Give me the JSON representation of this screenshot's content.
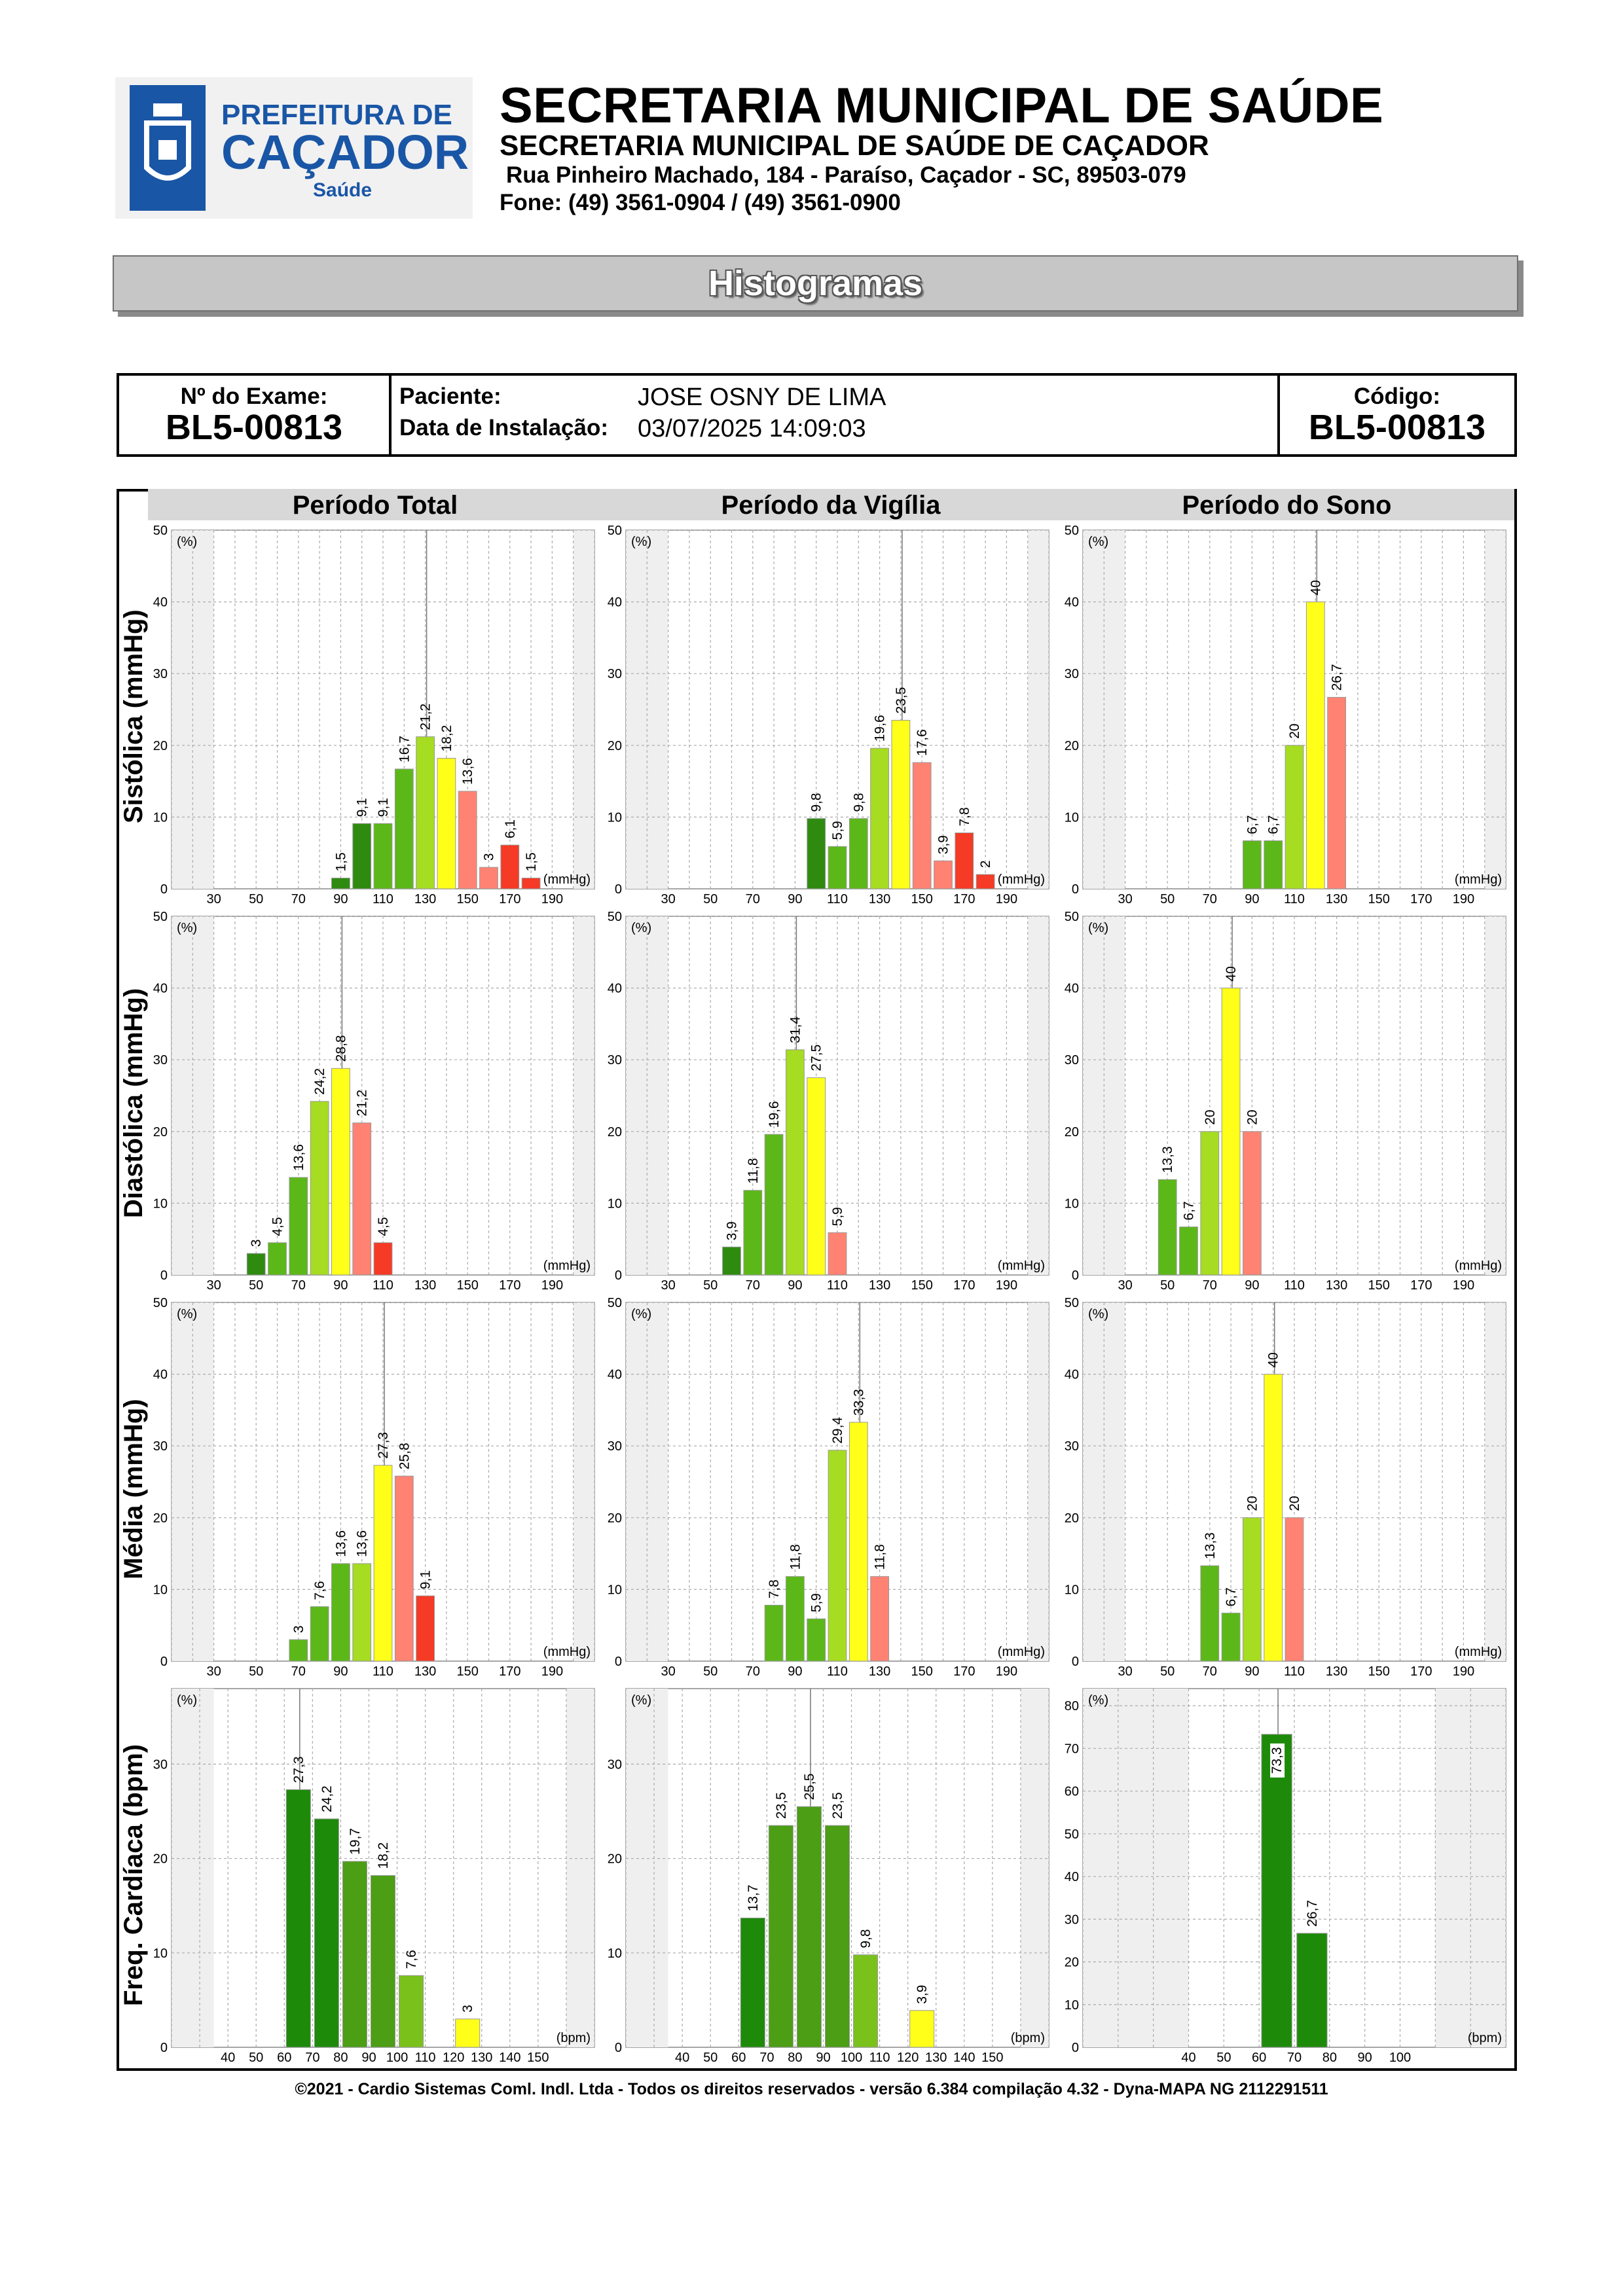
{
  "header": {
    "logo_text_top": "PREFEITURA DE",
    "logo_text_main": "CAÇADOR",
    "logo_text_sub": "Saúde",
    "title": "SECRETARIA MUNICIPAL DE SAÚDE",
    "subtitle": "SECRETARIA MUNICIPAL DE SAÚDE DE CAÇADOR",
    "address": "Rua Pinheiro Machado, 184 - Paraíso, Caçador - SC, 89503-079",
    "phone": "Fone: (49) 3561-0904  / (49) 3561-0900"
  },
  "banner": "Histogramas",
  "info": {
    "exam_label": "Nº do Exame:",
    "exam_value": "BL5-00813",
    "patient_label": "Paciente:",
    "patient_value": "JOSE OSNY DE LIMA",
    "install_label": "Data de Instalação:",
    "install_value": "03/07/2025 14:09:03",
    "code_label": "Código:",
    "code_value": "BL5-00813"
  },
  "columns": [
    "Período Total",
    "Período da Vigília",
    "Período do Sono"
  ],
  "rows": [
    "Sistólica (mmHg)",
    "Diastólica (mmHg)",
    "Média (mmHg)",
    "Freq. Cardíaca (bpm)"
  ],
  "footer": "©2021 - Cardio Sistemas Coml. Indl. Ltda - Todos os direitos reservados - versão 6.384 compilação 4.32 - Dyna-MAPA NG 2112291511",
  "colors": {
    "dark_green": "#2e8b10",
    "green": "#5cb818",
    "light_green": "#a6dc22",
    "yellow": "#ffff1a",
    "salmon": "#ff8272",
    "red": "#f53a25",
    "fc_dark": "#1d8a0a",
    "fc_mid": "#4c9e15",
    "fc_light": "#7bc11c"
  },
  "chart_data": [
    {
      "type": "bar",
      "row": "Sistólica (mmHg)",
      "column": "Período Total",
      "unit": "(mmHg)",
      "ylabel": "(%)",
      "ylim": [
        0,
        50
      ],
      "x_ticks": [
        "30",
        "50",
        "70",
        "90",
        "110",
        "130",
        "150",
        "170",
        "190"
      ],
      "bars": [
        {
          "x": 90,
          "v": 1.5,
          "label": "1,5",
          "c": "dark_green"
        },
        {
          "x": 100,
          "v": 9.1,
          "label": "9,1",
          "c": "dark_green"
        },
        {
          "x": 110,
          "v": 9.1,
          "label": "9,1",
          "c": "green"
        },
        {
          "x": 120,
          "v": 16.7,
          "label": "16,7",
          "c": "green"
        },
        {
          "x": 130,
          "v": 21.2,
          "label": "21,2",
          "c": "light_green"
        },
        {
          "x": 140,
          "v": 18.2,
          "label": "18,2",
          "c": "yellow"
        },
        {
          "x": 150,
          "v": 13.6,
          "label": "13,6",
          "c": "salmon"
        },
        {
          "x": 160,
          "v": 3,
          "label": "3",
          "c": "salmon"
        },
        {
          "x": 170,
          "v": 6.1,
          "label": "6,1",
          "c": "red"
        },
        {
          "x": 180,
          "v": 1.5,
          "label": "1,5",
          "c": "red"
        }
      ]
    },
    {
      "type": "bar",
      "row": "Sistólica (mmHg)",
      "column": "Período da Vigília",
      "unit": "(mmHg)",
      "ylabel": "(%)",
      "ylim": [
        0,
        50
      ],
      "x_ticks": [
        "30",
        "50",
        "70",
        "90",
        "110",
        "130",
        "150",
        "170",
        "190"
      ],
      "bars": [
        {
          "x": 100,
          "v": 9.8,
          "label": "9,8",
          "c": "dark_green"
        },
        {
          "x": 110,
          "v": 5.9,
          "label": "5,9",
          "c": "green"
        },
        {
          "x": 120,
          "v": 9.8,
          "label": "9,8",
          "c": "green"
        },
        {
          "x": 130,
          "v": 19.6,
          "label": "19,6",
          "c": "light_green"
        },
        {
          "x": 140,
          "v": 23.5,
          "label": "23,5",
          "c": "yellow"
        },
        {
          "x": 150,
          "v": 17.6,
          "label": "17,6",
          "c": "salmon"
        },
        {
          "x": 160,
          "v": 3.9,
          "label": "3,9",
          "c": "salmon"
        },
        {
          "x": 170,
          "v": 7.8,
          "label": "7,8",
          "c": "red"
        },
        {
          "x": 180,
          "v": 2,
          "label": "2",
          "c": "red"
        }
      ]
    },
    {
      "type": "bar",
      "row": "Sistólica (mmHg)",
      "column": "Período do Sono",
      "unit": "(mmHg)",
      "ylabel": "(%)",
      "ylim": [
        0,
        50
      ],
      "x_ticks": [
        "30",
        "50",
        "70",
        "90",
        "110",
        "130",
        "150",
        "170",
        "190"
      ],
      "bars": [
        {
          "x": 90,
          "v": 6.7,
          "label": "6,7",
          "c": "green"
        },
        {
          "x": 100,
          "v": 6.7,
          "label": "6,7",
          "c": "green"
        },
        {
          "x": 110,
          "v": 20,
          "label": "20",
          "c": "light_green"
        },
        {
          "x": 120,
          "v": 40,
          "label": "40",
          "c": "yellow"
        },
        {
          "x": 130,
          "v": 26.7,
          "label": "26,7",
          "c": "salmon"
        }
      ]
    },
    {
      "type": "bar",
      "row": "Diastólica (mmHg)",
      "column": "Período Total",
      "unit": "(mmHg)",
      "ylabel": "(%)",
      "ylim": [
        0,
        50
      ],
      "x_ticks": [
        "30",
        "50",
        "70",
        "90",
        "110",
        "130",
        "150",
        "170",
        "190"
      ],
      "bars": [
        {
          "x": 50,
          "v": 3,
          "label": "3",
          "c": "dark_green"
        },
        {
          "x": 60,
          "v": 4.5,
          "label": "4,5",
          "c": "green"
        },
        {
          "x": 70,
          "v": 13.6,
          "label": "13,6",
          "c": "green"
        },
        {
          "x": 80,
          "v": 24.2,
          "label": "24,2",
          "c": "light_green"
        },
        {
          "x": 90,
          "v": 28.8,
          "label": "28,8",
          "c": "yellow"
        },
        {
          "x": 100,
          "v": 21.2,
          "label": "21,2",
          "c": "salmon"
        },
        {
          "x": 110,
          "v": 4.5,
          "label": "4,5",
          "c": "red"
        }
      ]
    },
    {
      "type": "bar",
      "row": "Diastólica (mmHg)",
      "column": "Período da Vigília",
      "unit": "(mmHg)",
      "ylabel": "(%)",
      "ylim": [
        0,
        50
      ],
      "x_ticks": [
        "30",
        "50",
        "70",
        "90",
        "110",
        "130",
        "150",
        "170",
        "190"
      ],
      "bars": [
        {
          "x": 60,
          "v": 3.9,
          "label": "3,9",
          "c": "dark_green"
        },
        {
          "x": 70,
          "v": 11.8,
          "label": "11,8",
          "c": "green"
        },
        {
          "x": 80,
          "v": 19.6,
          "label": "19,6",
          "c": "green"
        },
        {
          "x": 90,
          "v": 31.4,
          "label": "31,4",
          "c": "light_green"
        },
        {
          "x": 100,
          "v": 27.5,
          "label": "27,5",
          "c": "yellow"
        },
        {
          "x": 110,
          "v": 5.9,
          "label": "5,9",
          "c": "salmon"
        }
      ]
    },
    {
      "type": "bar",
      "row": "Diastólica (mmHg)",
      "column": "Período do Sono",
      "unit": "(mmHg)",
      "ylabel": "(%)",
      "ylim": [
        0,
        50
      ],
      "x_ticks": [
        "30",
        "50",
        "70",
        "90",
        "110",
        "130",
        "150",
        "170",
        "190"
      ],
      "bars": [
        {
          "x": 50,
          "v": 13.3,
          "label": "13,3",
          "c": "green"
        },
        {
          "x": 60,
          "v": 6.7,
          "label": "6,7",
          "c": "green"
        },
        {
          "x": 70,
          "v": 20,
          "label": "20",
          "c": "light_green"
        },
        {
          "x": 80,
          "v": 40,
          "label": "40",
          "c": "yellow"
        },
        {
          "x": 90,
          "v": 20,
          "label": "20",
          "c": "salmon"
        }
      ]
    },
    {
      "type": "bar",
      "row": "Média (mmHg)",
      "column": "Período Total",
      "unit": "(mmHg)",
      "ylabel": "(%)",
      "ylim": [
        0,
        50
      ],
      "x_ticks": [
        "30",
        "50",
        "70",
        "90",
        "110",
        "130",
        "150",
        "170",
        "190"
      ],
      "bars": [
        {
          "x": 70,
          "v": 3,
          "label": "3",
          "c": "green"
        },
        {
          "x": 80,
          "v": 7.6,
          "label": "7,6",
          "c": "green"
        },
        {
          "x": 90,
          "v": 13.6,
          "label": "13,6",
          "c": "green"
        },
        {
          "x": 100,
          "v": 13.6,
          "label": "13,6",
          "c": "light_green"
        },
        {
          "x": 110,
          "v": 27.3,
          "label": "27,3",
          "c": "yellow"
        },
        {
          "x": 120,
          "v": 25.8,
          "label": "25,8",
          "c": "salmon"
        },
        {
          "x": 130,
          "v": 9.1,
          "label": "9,1",
          "c": "red"
        }
      ]
    },
    {
      "type": "bar",
      "row": "Média (mmHg)",
      "column": "Período da Vigília",
      "unit": "(mmHg)",
      "ylabel": "(%)",
      "ylim": [
        0,
        50
      ],
      "x_ticks": [
        "30",
        "50",
        "70",
        "90",
        "110",
        "130",
        "150",
        "170",
        "190"
      ],
      "bars": [
        {
          "x": 80,
          "v": 7.8,
          "label": "7,8",
          "c": "green"
        },
        {
          "x": 90,
          "v": 11.8,
          "label": "11,8",
          "c": "green"
        },
        {
          "x": 100,
          "v": 5.9,
          "label": "5,9",
          "c": "green"
        },
        {
          "x": 110,
          "v": 29.4,
          "label": "29,4",
          "c": "light_green"
        },
        {
          "x": 120,
          "v": 33.3,
          "label": "33,3",
          "c": "yellow"
        },
        {
          "x": 130,
          "v": 11.8,
          "label": "11,8",
          "c": "salmon"
        }
      ]
    },
    {
      "type": "bar",
      "row": "Média (mmHg)",
      "column": "Período do Sono",
      "unit": "(mmHg)",
      "ylabel": "(%)",
      "ylim": [
        0,
        50
      ],
      "x_ticks": [
        "30",
        "50",
        "70",
        "90",
        "110",
        "130",
        "150",
        "170",
        "190"
      ],
      "bars": [
        {
          "x": 70,
          "v": 13.3,
          "label": "13,3",
          "c": "green"
        },
        {
          "x": 80,
          "v": 6.7,
          "label": "6,7",
          "c": "green"
        },
        {
          "x": 90,
          "v": 20,
          "label": "20",
          "c": "light_green"
        },
        {
          "x": 100,
          "v": 40,
          "label": "40",
          "c": "yellow"
        },
        {
          "x": 110,
          "v": 20,
          "label": "20",
          "c": "salmon"
        }
      ]
    },
    {
      "type": "bar",
      "row": "Freq. Cardíaca (bpm)",
      "column": "Período Total",
      "unit": "(bpm)",
      "ylabel": "(%)",
      "ylim": [
        0,
        38
      ],
      "y_ticks": [
        0,
        10,
        20,
        30
      ],
      "x_ticks": [
        "40",
        "50",
        "60",
        "70",
        "80",
        "90",
        "100",
        "110",
        "120",
        "130",
        "140",
        "150"
      ],
      "bars": [
        {
          "x": 65,
          "v": 27.3,
          "label": "27,3",
          "c": "fc_dark"
        },
        {
          "x": 75,
          "v": 24.2,
          "label": "24,2",
          "c": "fc_dark"
        },
        {
          "x": 85,
          "v": 19.7,
          "label": "19,7",
          "c": "fc_mid"
        },
        {
          "x": 95,
          "v": 18.2,
          "label": "18,2",
          "c": "fc_mid"
        },
        {
          "x": 105,
          "v": 7.6,
          "label": "7,6",
          "c": "fc_light"
        },
        {
          "x": 125,
          "v": 3,
          "label": "3",
          "c": "yellow"
        }
      ]
    },
    {
      "type": "bar",
      "row": "Freq. Cardíaca (bpm)",
      "column": "Período da Vigília",
      "unit": "(bpm)",
      "ylabel": "(%)",
      "ylim": [
        0,
        38
      ],
      "y_ticks": [
        0,
        10,
        20,
        30
      ],
      "x_ticks": [
        "40",
        "50",
        "60",
        "70",
        "80",
        "90",
        "100",
        "110",
        "120",
        "130",
        "140",
        "150"
      ],
      "bars": [
        {
          "x": 65,
          "v": 13.7,
          "label": "13,7",
          "c": "fc_dark"
        },
        {
          "x": 75,
          "v": 23.5,
          "label": "23,5",
          "c": "fc_mid"
        },
        {
          "x": 85,
          "v": 25.5,
          "label": "25,5",
          "c": "fc_mid"
        },
        {
          "x": 95,
          "v": 23.5,
          "label": "23,5",
          "c": "fc_mid"
        },
        {
          "x": 105,
          "v": 9.8,
          "label": "9,8",
          "c": "fc_light"
        },
        {
          "x": 125,
          "v": 3.9,
          "label": "3,9",
          "c": "yellow"
        }
      ]
    },
    {
      "type": "bar",
      "row": "Freq. Cardíaca (bpm)",
      "column": "Período do Sono",
      "unit": "(bpm)",
      "ylabel": "(%)",
      "ylim": [
        0,
        84
      ],
      "y_ticks": [
        0,
        10,
        20,
        30,
        40,
        50,
        60,
        70,
        80
      ],
      "x_ticks": [
        "40",
        "50",
        "60",
        "70",
        "80",
        "90",
        "100"
      ],
      "bars": [
        {
          "x": 65,
          "v": 73.3,
          "label": "73,3",
          "c": "fc_dark"
        },
        {
          "x": 75,
          "v": 26.7,
          "label": "26,7",
          "c": "fc_dark"
        }
      ]
    }
  ]
}
